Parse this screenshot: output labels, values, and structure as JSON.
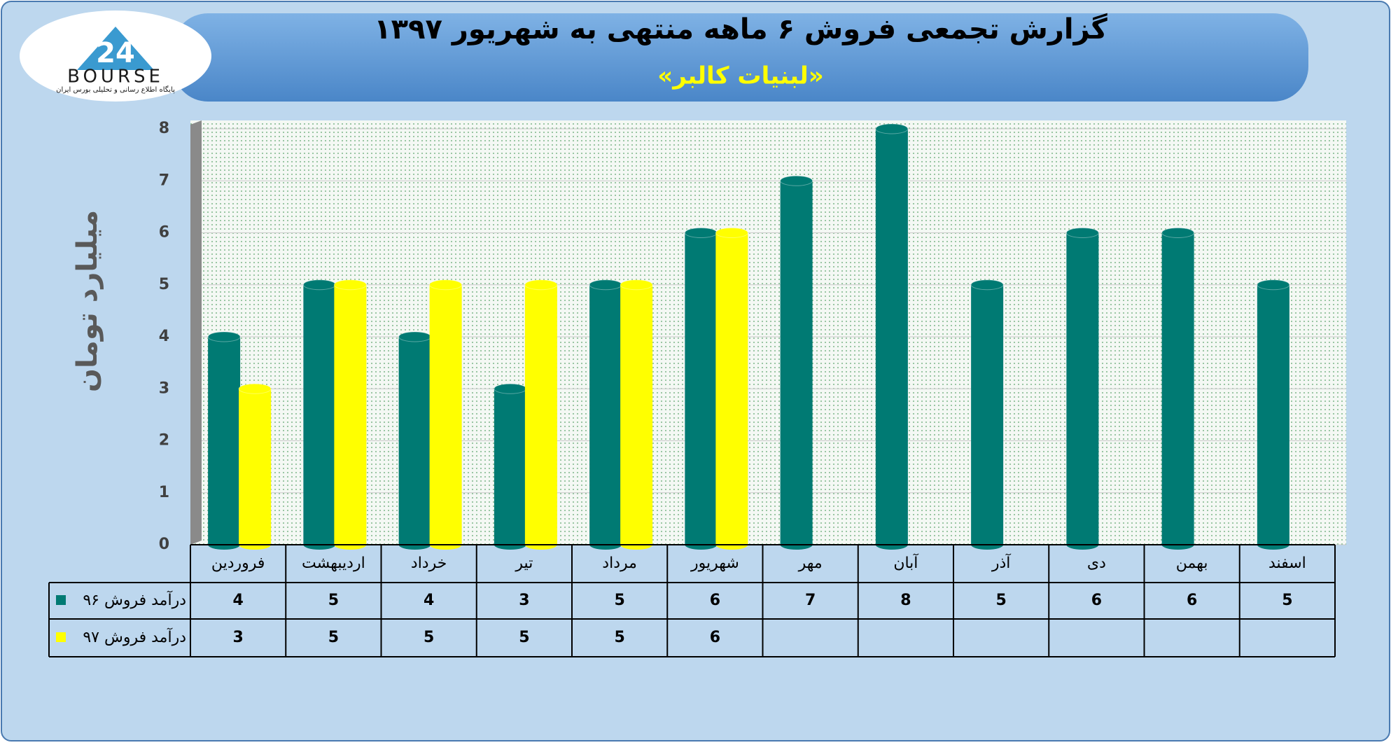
{
  "logo": {
    "number": "24",
    "name": "BOURSE",
    "tagline": "پایگاه اطلاع رسانی و تحلیلی بورس ایران"
  },
  "chart_data": {
    "type": "bar",
    "title": "گزارش تجمعی فروش ۶ ماهه منتهی به شهریور ۱۳۹۷",
    "subtitle": "«لبنیات کالبر»",
    "y_label": "میلیارد تومان",
    "categories": [
      "فروردین",
      "اردیبهشت",
      "خرداد",
      "تیر",
      "مرداد",
      "شهریور",
      "مهر",
      "آبان",
      "آذر",
      "دی",
      "بهمن",
      "اسفند"
    ],
    "series": [
      {
        "name": "درآمد فروش ۹۶",
        "color": "#007a73",
        "values": [
          4,
          5,
          4,
          3,
          5,
          6,
          7,
          8,
          5,
          6,
          6,
          5
        ]
      },
      {
        "name": "درآمد فروش ۹۷",
        "color": "#ffff00",
        "values": [
          3,
          5,
          5,
          5,
          5,
          6,
          null,
          null,
          null,
          null,
          null,
          null
        ]
      }
    ],
    "ylim": [
      0,
      8
    ],
    "yticks": [
      0,
      1,
      2,
      3,
      4,
      5,
      6,
      7,
      8
    ],
    "grid": true
  }
}
